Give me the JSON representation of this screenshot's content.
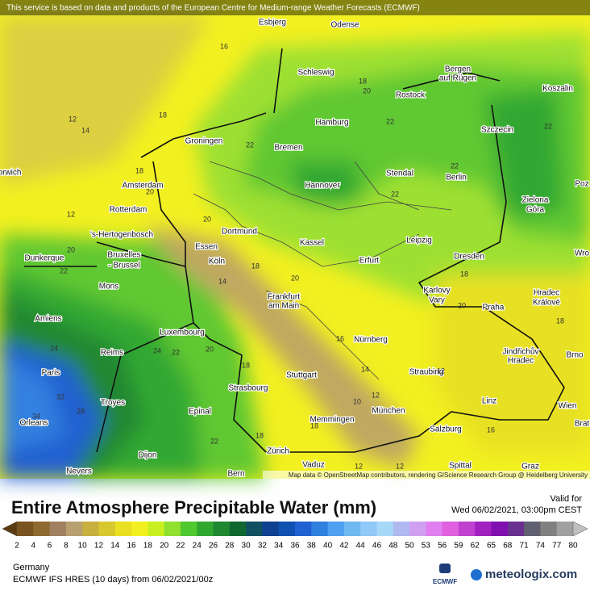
{
  "header": {
    "notice": "This service is based on data and products of the European Centre for Medium-range Weather Forecasts (ECMWF)",
    "title": "Entire Atmosphere Precipitable Water (mm)",
    "valid_label": "Valid for",
    "valid_time": "Wed 06/02/2021, 03:00pm CEST"
  },
  "map": {
    "places": [
      "Esbjerg",
      "Odense",
      "Schleswig",
      "Bergen",
      "auf Rügen",
      "Rostock",
      "Koszalin",
      "Hamburg",
      "Szczecin",
      "Groningen",
      "Bremen",
      "orwich",
      "Stendal",
      "Berlin",
      "Amsterdam",
      "Hannover",
      "Zielona",
      "Góra",
      "Poz",
      "Rotterdam",
      "'s-Hertogenbosch",
      "Dortmund",
      "Essen",
      "Kassel",
      "Leipzig",
      "Dunkerque",
      "Bruxelles",
      "- Brussel",
      "Köln",
      "Erfurt",
      "Dresden",
      "Wro",
      "Mons",
      "Frankfurt",
      "am Main",
      "Karlovy",
      "Vary",
      "Hradec",
      "Králové",
      "Praha",
      "Amiens",
      "Luxembourg",
      "Nürnberg",
      "Jindřichův",
      "Hradec",
      "Reims",
      "Brno",
      "Paris",
      "Stuttgart",
      "Straubing",
      "Troyes",
      "Strasbourg",
      "Linz",
      "Wien",
      "Memmingen",
      "München",
      "Epinal",
      "Orleans",
      "Salzburg",
      "Brat",
      "Dijon",
      "Zürich",
      "Vaduz",
      "Nevers",
      "Bern",
      "Spittal",
      "Graz"
    ],
    "contour_labels": [
      16,
      18,
      20,
      12,
      14,
      18,
      22,
      22,
      22,
      18,
      22,
      20,
      22,
      12,
      20,
      20,
      22,
      18,
      14,
      20,
      18,
      20,
      18,
      16,
      24,
      24,
      22,
      20,
      14,
      12,
      18,
      32,
      28,
      34,
      10,
      12,
      18,
      16,
      22,
      12,
      12,
      18
    ],
    "credits": "Map data © OpenStreetMap contributors, rendering GIScience Research Group @ Heidelberg University"
  },
  "legend": {
    "ticks": [
      2,
      4,
      6,
      8,
      10,
      12,
      14,
      16,
      18,
      20,
      22,
      24,
      26,
      28,
      30,
      32,
      34,
      36,
      38,
      40,
      42,
      44,
      46,
      48,
      50,
      53,
      56,
      59,
      62,
      65,
      68,
      71,
      74,
      77,
      80
    ],
    "colors": [
      "#5a3a10",
      "#7a5420",
      "#8e6a30",
      "#a08060",
      "#b8a070",
      "#c8b040",
      "#d8c830",
      "#e8e020",
      "#f2f020",
      "#c8f020",
      "#90e030",
      "#50c830",
      "#30a830",
      "#208830",
      "#106830",
      "#105060",
      "#104090",
      "#1050b0",
      "#2060d0",
      "#3080e0",
      "#50a0f0",
      "#70b8f0",
      "#90c8f8",
      "#a8d8f8",
      "#b0b8f0",
      "#d0a0f0",
      "#e080f0",
      "#e060e0",
      "#c040d0",
      "#a020c0",
      "#8010b0",
      "#6a3090",
      "#606070",
      "#808080",
      "#a0a0a0",
      "#c0c0c0"
    ]
  },
  "footer": {
    "region": "Germany",
    "model": "ECMWF IFS HRES (10 days) from 06/02/2021/00z",
    "logo": "ECMWF",
    "brand": "meteologix.com"
  }
}
